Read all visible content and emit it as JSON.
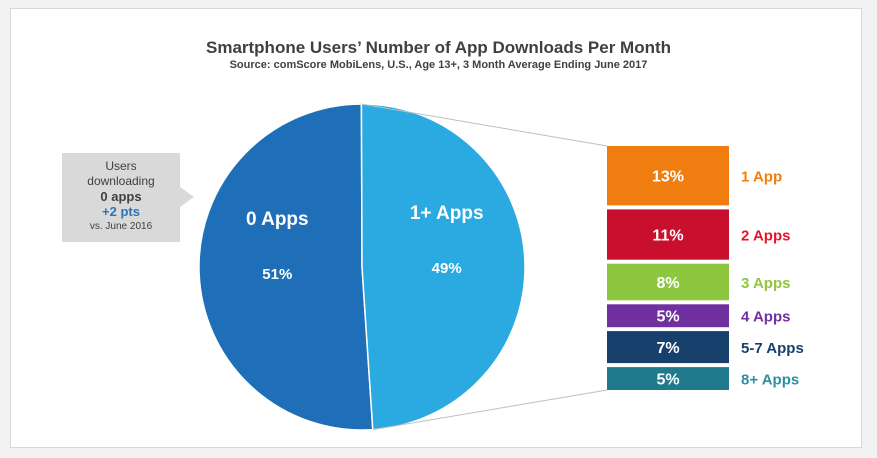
{
  "chart_data": {
    "type": "pie",
    "title": "Smartphone Users’ Number of App Downloads Per Month",
    "subtitle": "Source: comScore MobiLens, U.S., Age 13+, 3 Month Average Ending June 2017",
    "slices": [
      {
        "label": "0 Apps",
        "value": 51,
        "value_label": "51%",
        "color": "#1f6fb8"
      },
      {
        "label": "1+ Apps",
        "value": 49,
        "value_label": "49%",
        "color": "#2aaae0"
      }
    ],
    "breakdown": [
      {
        "label": "1 App",
        "value": 13,
        "value_label": "13%",
        "color": "#ef7d10",
        "label_color": "#ef7d10"
      },
      {
        "label": "2 Apps",
        "value": 11,
        "value_label": "11%",
        "color": "#c8102e",
        "label_color": "#e8132b"
      },
      {
        "label": "3 Apps",
        "value": 8,
        "value_label": "8%",
        "color": "#8dc63f",
        "label_color": "#8dc63f"
      },
      {
        "label": "4 Apps",
        "value": 5,
        "value_label": "5%",
        "color": "#7030a0",
        "label_color": "#7030a0"
      },
      {
        "label": "5-7 Apps",
        "value": 7,
        "value_label": "7%",
        "color": "#17406d",
        "label_color": "#17406d"
      },
      {
        "label": "8+ Apps",
        "value": 5,
        "value_label": "5%",
        "color": "#1f7a8c",
        "label_color": "#2a8fa5"
      }
    ]
  },
  "callout": {
    "line1": "Users",
    "line2": "downloading",
    "line3": "0 apps",
    "line4": "+2 pts",
    "line5": "vs. June 2016"
  }
}
